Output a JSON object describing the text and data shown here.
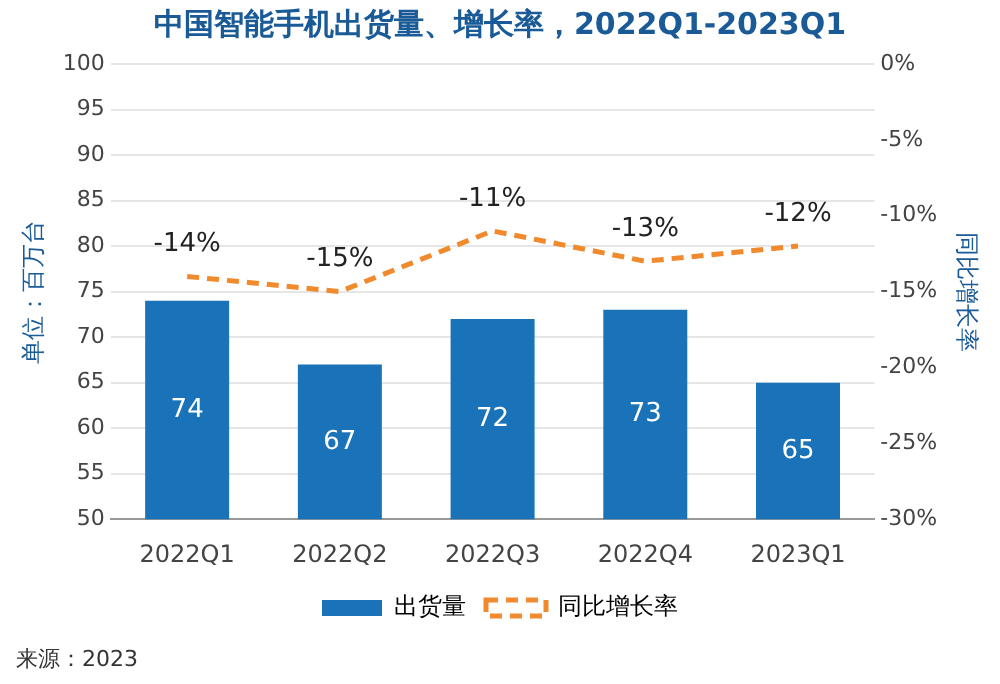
{
  "chart_data": {
    "type": "bar",
    "title": "中国智能手机出货量、增长率，2022Q1-2023Q1",
    "categories": [
      "2022Q1",
      "2022Q2",
      "2022Q3",
      "2022Q4",
      "2023Q1"
    ],
    "series": [
      {
        "name": "出货量",
        "color": "#1a73b8",
        "values": [
          74,
          67,
          72,
          73,
          65
        ],
        "value_labels": [
          "74",
          "67",
          "72",
          "73",
          "65"
        ]
      },
      {
        "name": "同比增长率",
        "type": "line",
        "axis": "y2",
        "color": "#f08a2c",
        "values": [
          -14,
          -15,
          -11,
          -13,
          -12
        ],
        "value_labels": [
          "-14%",
          "-15%",
          "-11%",
          "-13%",
          "-12%"
        ],
        "line_style": "dashed",
        "marker": "none"
      }
    ],
    "ylabel": "单位：百万台",
    "y2label": "同比增长率",
    "ylim": [
      50,
      100
    ],
    "yticks": [
      50,
      55,
      60,
      65,
      70,
      75,
      80,
      85,
      90,
      95,
      100
    ],
    "y2lim": [
      -30,
      0
    ],
    "y2ticks": [
      {
        "value": 0,
        "label": "0%"
      },
      {
        "value": -5,
        "label": "-5%"
      },
      {
        "value": -10,
        "label": "-10%"
      },
      {
        "value": -15,
        "label": "-15%"
      },
      {
        "value": -20,
        "label": "-20%"
      },
      {
        "value": -25,
        "label": "-25%"
      },
      {
        "value": -30,
        "label": "-30%"
      }
    ],
    "grid": "y",
    "legend": "bottom",
    "annotations": [
      "来源：2023"
    ]
  }
}
